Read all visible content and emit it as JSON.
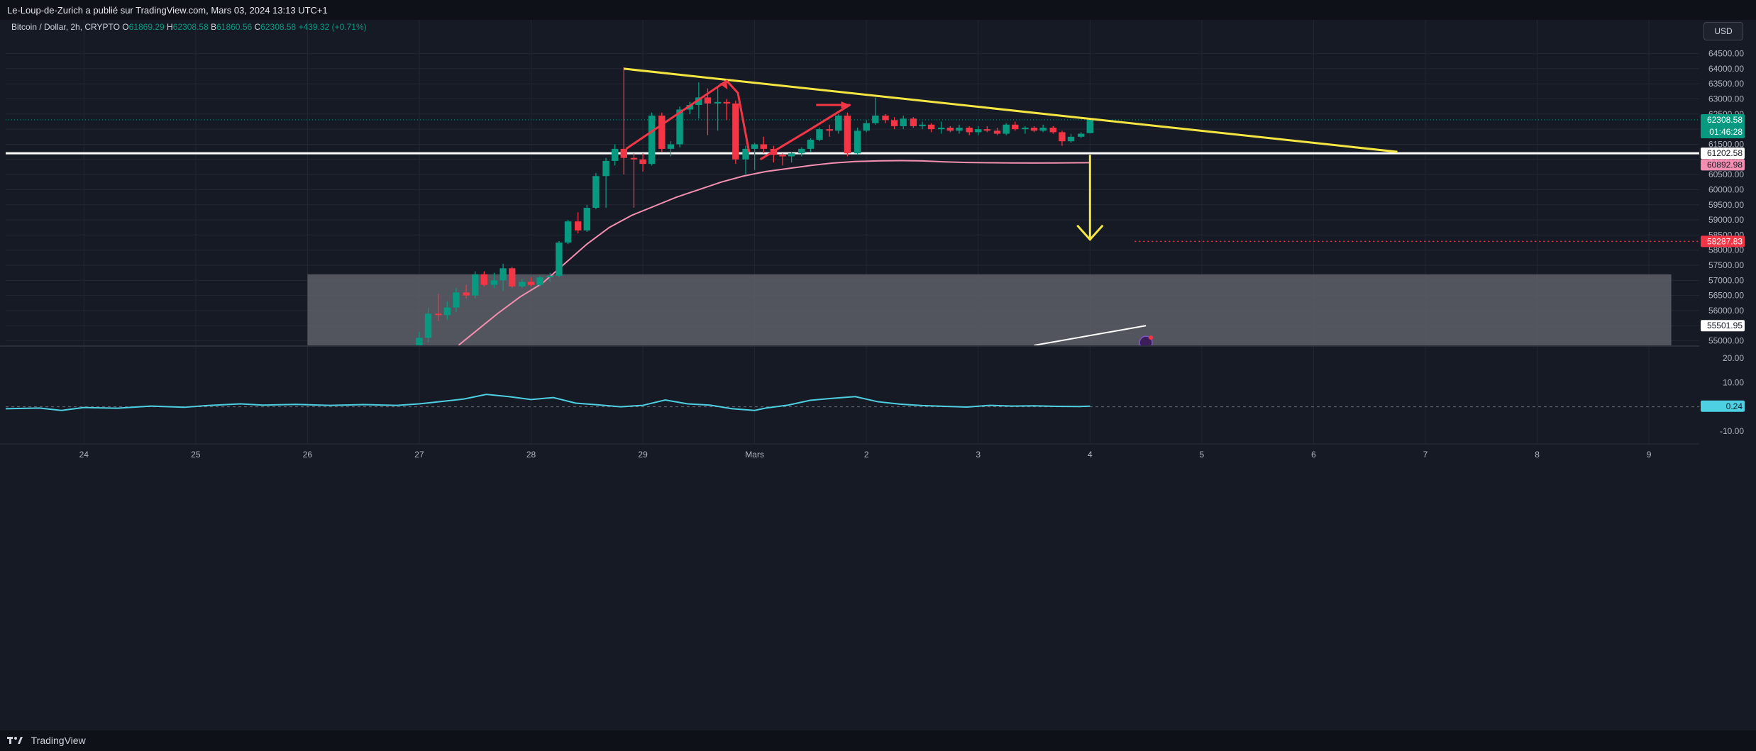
{
  "header": {
    "publish_text": "Le-Loup-de-Zurich a publié sur TradingView.com, Mars 03, 2024 13:13 UTC+1"
  },
  "legend": {
    "symbol": "Bitcoin / Dollar, 2h, CRYPTO",
    "o_label": "O",
    "o_value": "61869.29",
    "h_label": "H",
    "h_value": "62308.58",
    "b_label": "B",
    "b_value": "61860.56",
    "c_label": "C",
    "c_value": "62308.58",
    "change": "+439.32 (+0.71%)"
  },
  "currency": "USD",
  "footer": {
    "brand": "TradingView"
  },
  "colors": {
    "background": "#161a25",
    "up": "#089981",
    "down": "#f23645",
    "trendline": "#f5e642",
    "ma": "#f48fb1",
    "oscillator": "#4dd0e1",
    "zone": "#5d5f68"
  },
  "chart_data": {
    "type": "candlestick",
    "price_axis": {
      "ticks": [
        "64500.00",
        "64000.00",
        "63500.00",
        "63000.00",
        "62500.00",
        "62000.00",
        "61500.00",
        "61000.00",
        "60500.00",
        "60000.00",
        "59500.00",
        "59000.00",
        "58500.00",
        "58000.00",
        "57500.00",
        "57000.00",
        "56500.00",
        "56000.00",
        "55500.00",
        "55000.00"
      ],
      "ylim": [
        54850,
        65100
      ]
    },
    "time_axis": {
      "ticks": [
        "24",
        "25",
        "26",
        "27",
        "28",
        "29",
        "Mars",
        "2",
        "3",
        "4",
        "5",
        "6",
        "7",
        "8",
        "9"
      ],
      "xlim": [
        -0.7,
        14.45
      ]
    },
    "labels": {
      "last_price": "62308.58",
      "countdown": "01:46:28",
      "support": "61202.58",
      "ma_value": "60892.98",
      "target": "58287.83",
      "white_line_value": "55501.95"
    },
    "candles": [
      {
        "t": 3.0,
        "o": 54850,
        "h": 55300,
        "l": 54850,
        "c": 55100
      },
      {
        "t": 3.08,
        "o": 55100,
        "h": 56100,
        "l": 54950,
        "c": 55900
      },
      {
        "t": 3.17,
        "o": 55900,
        "h": 56550,
        "l": 55650,
        "c": 55850
      },
      {
        "t": 3.25,
        "o": 55850,
        "h": 56300,
        "l": 55700,
        "c": 56100
      },
      {
        "t": 3.33,
        "o": 56100,
        "h": 56750,
        "l": 55950,
        "c": 56600
      },
      {
        "t": 3.42,
        "o": 56600,
        "h": 56850,
        "l": 56400,
        "c": 56500
      },
      {
        "t": 3.5,
        "o": 56500,
        "h": 57300,
        "l": 56400,
        "c": 57200
      },
      {
        "t": 3.58,
        "o": 57200,
        "h": 57300,
        "l": 56800,
        "c": 56850
      },
      {
        "t": 3.67,
        "o": 56850,
        "h": 57250,
        "l": 56750,
        "c": 57000
      },
      {
        "t": 3.75,
        "o": 57000,
        "h": 57550,
        "l": 56650,
        "c": 57400
      },
      {
        "t": 3.83,
        "o": 57400,
        "h": 57450,
        "l": 56750,
        "c": 56800
      },
      {
        "t": 3.92,
        "o": 56800,
        "h": 57050,
        "l": 56750,
        "c": 56950
      },
      {
        "t": 4.0,
        "o": 56950,
        "h": 57100,
        "l": 56800,
        "c": 56850
      },
      {
        "t": 4.08,
        "o": 56850,
        "h": 57150,
        "l": 56800,
        "c": 57100
      },
      {
        "t": 4.17,
        "o": 57100,
        "h": 57250,
        "l": 56950,
        "c": 57150
      },
      {
        "t": 4.25,
        "o": 57150,
        "h": 58300,
        "l": 57100,
        "c": 58250
      },
      {
        "t": 4.33,
        "o": 58250,
        "h": 59000,
        "l": 58200,
        "c": 58950
      },
      {
        "t": 4.42,
        "o": 58950,
        "h": 59250,
        "l": 58550,
        "c": 58650
      },
      {
        "t": 4.5,
        "o": 58650,
        "h": 59500,
        "l": 58600,
        "c": 59400
      },
      {
        "t": 4.58,
        "o": 59400,
        "h": 60550,
        "l": 59350,
        "c": 60450
      },
      {
        "t": 4.67,
        "o": 60450,
        "h": 61050,
        "l": 59400,
        "c": 60950
      },
      {
        "t": 4.75,
        "o": 60950,
        "h": 61500,
        "l": 60800,
        "c": 61350
      },
      {
        "t": 4.83,
        "o": 61350,
        "h": 64050,
        "l": 60500,
        "c": 61050
      },
      {
        "t": 4.92,
        "o": 61050,
        "h": 61200,
        "l": 59400,
        "c": 61000
      },
      {
        "t": 5.0,
        "o": 61000,
        "h": 61200,
        "l": 60600,
        "c": 60850
      },
      {
        "t": 5.08,
        "o": 60850,
        "h": 62550,
        "l": 60800,
        "c": 62450
      },
      {
        "t": 5.17,
        "o": 62450,
        "h": 62550,
        "l": 61250,
        "c": 61350
      },
      {
        "t": 5.25,
        "o": 61350,
        "h": 61600,
        "l": 61100,
        "c": 61500
      },
      {
        "t": 5.33,
        "o": 61500,
        "h": 62750,
        "l": 61400,
        "c": 62650
      },
      {
        "t": 5.42,
        "o": 62650,
        "h": 62900,
        "l": 62500,
        "c": 62800
      },
      {
        "t": 5.5,
        "o": 62800,
        "h": 63550,
        "l": 62350,
        "c": 63050
      },
      {
        "t": 5.58,
        "o": 63050,
        "h": 63350,
        "l": 61800,
        "c": 62850
      },
      {
        "t": 5.67,
        "o": 62850,
        "h": 63400,
        "l": 61950,
        "c": 62900
      },
      {
        "t": 5.75,
        "o": 62900,
        "h": 63000,
        "l": 62300,
        "c": 62850
      },
      {
        "t": 5.83,
        "o": 62850,
        "h": 62950,
        "l": 60850,
        "c": 61000
      },
      {
        "t": 5.92,
        "o": 61000,
        "h": 61450,
        "l": 60500,
        "c": 61350
      },
      {
        "t": 6.0,
        "o": 61350,
        "h": 61550,
        "l": 60650,
        "c": 61500
      },
      {
        "t": 6.08,
        "o": 61500,
        "h": 61750,
        "l": 61200,
        "c": 61350
      },
      {
        "t": 6.17,
        "o": 61350,
        "h": 61450,
        "l": 60900,
        "c": 61150
      },
      {
        "t": 6.25,
        "o": 61150,
        "h": 61200,
        "l": 60800,
        "c": 61100
      },
      {
        "t": 6.33,
        "o": 61100,
        "h": 61250,
        "l": 60900,
        "c": 61200
      },
      {
        "t": 6.42,
        "o": 61200,
        "h": 61400,
        "l": 61100,
        "c": 61350
      },
      {
        "t": 6.5,
        "o": 61350,
        "h": 61700,
        "l": 61250,
        "c": 61650
      },
      {
        "t": 6.58,
        "o": 61650,
        "h": 62050,
        "l": 61600,
        "c": 62000
      },
      {
        "t": 6.67,
        "o": 62000,
        "h": 62150,
        "l": 61750,
        "c": 61950
      },
      {
        "t": 6.75,
        "o": 61950,
        "h": 62500,
        "l": 61850,
        "c": 62450
      },
      {
        "t": 6.83,
        "o": 62450,
        "h": 62550,
        "l": 61100,
        "c": 61200
      },
      {
        "t": 6.92,
        "o": 61200,
        "h": 62050,
        "l": 61150,
        "c": 61950
      },
      {
        "t": 7.0,
        "o": 61950,
        "h": 62300,
        "l": 61900,
        "c": 62200
      },
      {
        "t": 7.08,
        "o": 62200,
        "h": 63050,
        "l": 62150,
        "c": 62450
      },
      {
        "t": 7.17,
        "o": 62450,
        "h": 62500,
        "l": 62200,
        "c": 62300
      },
      {
        "t": 7.25,
        "o": 62300,
        "h": 62400,
        "l": 62000,
        "c": 62100
      },
      {
        "t": 7.33,
        "o": 62100,
        "h": 62450,
        "l": 62000,
        "c": 62350
      },
      {
        "t": 7.42,
        "o": 62350,
        "h": 62400,
        "l": 62050,
        "c": 62100
      },
      {
        "t": 7.5,
        "o": 62100,
        "h": 62250,
        "l": 62000,
        "c": 62150
      },
      {
        "t": 7.58,
        "o": 62150,
        "h": 62200,
        "l": 61900,
        "c": 62000
      },
      {
        "t": 7.67,
        "o": 62000,
        "h": 62250,
        "l": 61850,
        "c": 62050
      },
      {
        "t": 7.75,
        "o": 62050,
        "h": 62100,
        "l": 61900,
        "c": 61950
      },
      {
        "t": 7.83,
        "o": 61950,
        "h": 62150,
        "l": 61850,
        "c": 62050
      },
      {
        "t": 7.92,
        "o": 62050,
        "h": 62100,
        "l": 61800,
        "c": 61900
      },
      {
        "t": 8.0,
        "o": 61900,
        "h": 62100,
        "l": 61800,
        "c": 62000
      },
      {
        "t": 8.08,
        "o": 62000,
        "h": 62100,
        "l": 61900,
        "c": 61950
      },
      {
        "t": 8.17,
        "o": 61950,
        "h": 62050,
        "l": 61800,
        "c": 61850
      },
      {
        "t": 8.25,
        "o": 61850,
        "h": 62200,
        "l": 61800,
        "c": 62150
      },
      {
        "t": 8.33,
        "o": 62150,
        "h": 62250,
        "l": 61950,
        "c": 62000
      },
      {
        "t": 8.42,
        "o": 62000,
        "h": 62100,
        "l": 61850,
        "c": 62050
      },
      {
        "t": 8.5,
        "o": 62050,
        "h": 62100,
        "l": 61900,
        "c": 61950
      },
      {
        "t": 8.58,
        "o": 61950,
        "h": 62150,
        "l": 61900,
        "c": 62050
      },
      {
        "t": 8.67,
        "o": 62050,
        "h": 62100,
        "l": 61850,
        "c": 61900
      },
      {
        "t": 8.75,
        "o": 61900,
        "h": 61950,
        "l": 61450,
        "c": 61600
      },
      {
        "t": 8.83,
        "o": 61600,
        "h": 61850,
        "l": 61550,
        "c": 61750
      },
      {
        "t": 8.92,
        "o": 61750,
        "h": 61900,
        "l": 61700,
        "c": 61850
      },
      {
        "t": 9.0,
        "o": 61870,
        "h": 62310,
        "l": 61860,
        "c": 62310
      }
    ],
    "ma_line": [
      [
        3.35,
        54850
      ],
      [
        3.5,
        55300
      ],
      [
        3.7,
        55900
      ],
      [
        3.9,
        56450
      ],
      [
        4.1,
        56900
      ],
      [
        4.3,
        57550
      ],
      [
        4.5,
        58200
      ],
      [
        4.7,
        58750
      ],
      [
        4.9,
        59150
      ],
      [
        5.1,
        59450
      ],
      [
        5.3,
        59750
      ],
      [
        5.5,
        60000
      ],
      [
        5.7,
        60250
      ],
      [
        5.9,
        60450
      ],
      [
        6.1,
        60600
      ],
      [
        6.3,
        60700
      ],
      [
        6.5,
        60800
      ],
      [
        6.7,
        60880
      ],
      [
        6.9,
        60930
      ],
      [
        7.1,
        60950
      ],
      [
        7.3,
        60960
      ],
      [
        7.5,
        60950
      ],
      [
        7.7,
        60920
      ],
      [
        7.9,
        60900
      ],
      [
        8.1,
        60890
      ],
      [
        8.3,
        60885
      ],
      [
        8.5,
        60880
      ],
      [
        8.7,
        60885
      ],
      [
        8.9,
        60890
      ],
      [
        9.0,
        60892.98
      ]
    ],
    "oscillator": {
      "ticks": [
        "20.00",
        "10.00",
        "0.24",
        "-10.00"
      ],
      "ylim": [
        -15,
        25
      ],
      "last_value": "0.24",
      "values": [
        [
          -0.7,
          -0.8
        ],
        [
          -0.4,
          -0.5
        ],
        [
          -0.2,
          -1.5
        ],
        [
          0.0,
          -0.3
        ],
        [
          0.3,
          -0.6
        ],
        [
          0.6,
          0.3
        ],
        [
          0.9,
          -0.2
        ],
        [
          1.1,
          0.5
        ],
        [
          1.4,
          1.2
        ],
        [
          1.6,
          0.7
        ],
        [
          1.9,
          1.0
        ],
        [
          2.2,
          0.6
        ],
        [
          2.5,
          0.9
        ],
        [
          2.8,
          0.6
        ],
        [
          3.0,
          1.2
        ],
        [
          3.2,
          2.2
        ],
        [
          3.4,
          3.2
        ],
        [
          3.6,
          5.1
        ],
        [
          3.8,
          4.2
        ],
        [
          4.0,
          3.0
        ],
        [
          4.2,
          3.8
        ],
        [
          4.4,
          1.5
        ],
        [
          4.6,
          0.8
        ],
        [
          4.8,
          0.0
        ],
        [
          5.0,
          0.6
        ],
        [
          5.2,
          2.8
        ],
        [
          5.4,
          1.2
        ],
        [
          5.6,
          0.7
        ],
        [
          5.8,
          -0.8
        ],
        [
          6.0,
          -1.5
        ],
        [
          6.1,
          -0.5
        ],
        [
          6.3,
          0.7
        ],
        [
          6.5,
          2.7
        ],
        [
          6.7,
          3.5
        ],
        [
          6.9,
          4.2
        ],
        [
          7.1,
          2.1
        ],
        [
          7.3,
          1.1
        ],
        [
          7.5,
          0.5
        ],
        [
          7.7,
          0.2
        ],
        [
          7.9,
          -0.1
        ],
        [
          8.1,
          0.6
        ],
        [
          8.3,
          0.3
        ],
        [
          8.5,
          0.4
        ],
        [
          8.7,
          0.2
        ],
        [
          8.9,
          0.1
        ],
        [
          9.0,
          0.24
        ]
      ]
    },
    "annotations": {
      "yellow_trendline": [
        [
          4.83,
          64000
        ],
        [
          11.75,
          61250
        ]
      ],
      "support_level": 61202.58,
      "zone": {
        "x_start": 2.0,
        "x_end": 14.2,
        "y_top": 57200,
        "y_bottom": 54850
      },
      "red_arrow_1": [
        [
          4.85,
          61350
        ],
        [
          5.75,
          63600
        ],
        [
          5.85,
          63200
        ],
        [
          5.95,
          61250
        ]
      ],
      "red_arrow_2": [
        [
          6.05,
          61000
        ],
        [
          6.5,
          62000
        ],
        [
          6.85,
          62800
        ],
        [
          6.55,
          62800
        ]
      ],
      "yellow_arrow": [
        [
          9.0,
          61150
        ],
        [
          9.0,
          58350
        ]
      ],
      "target_dotted": [
        [
          9.4,
          58287.83
        ],
        [
          14.45,
          58287.83
        ]
      ],
      "white_line": [
        [
          8.5,
          54850
        ],
        [
          9.5,
          55501.95
        ]
      ]
    }
  }
}
